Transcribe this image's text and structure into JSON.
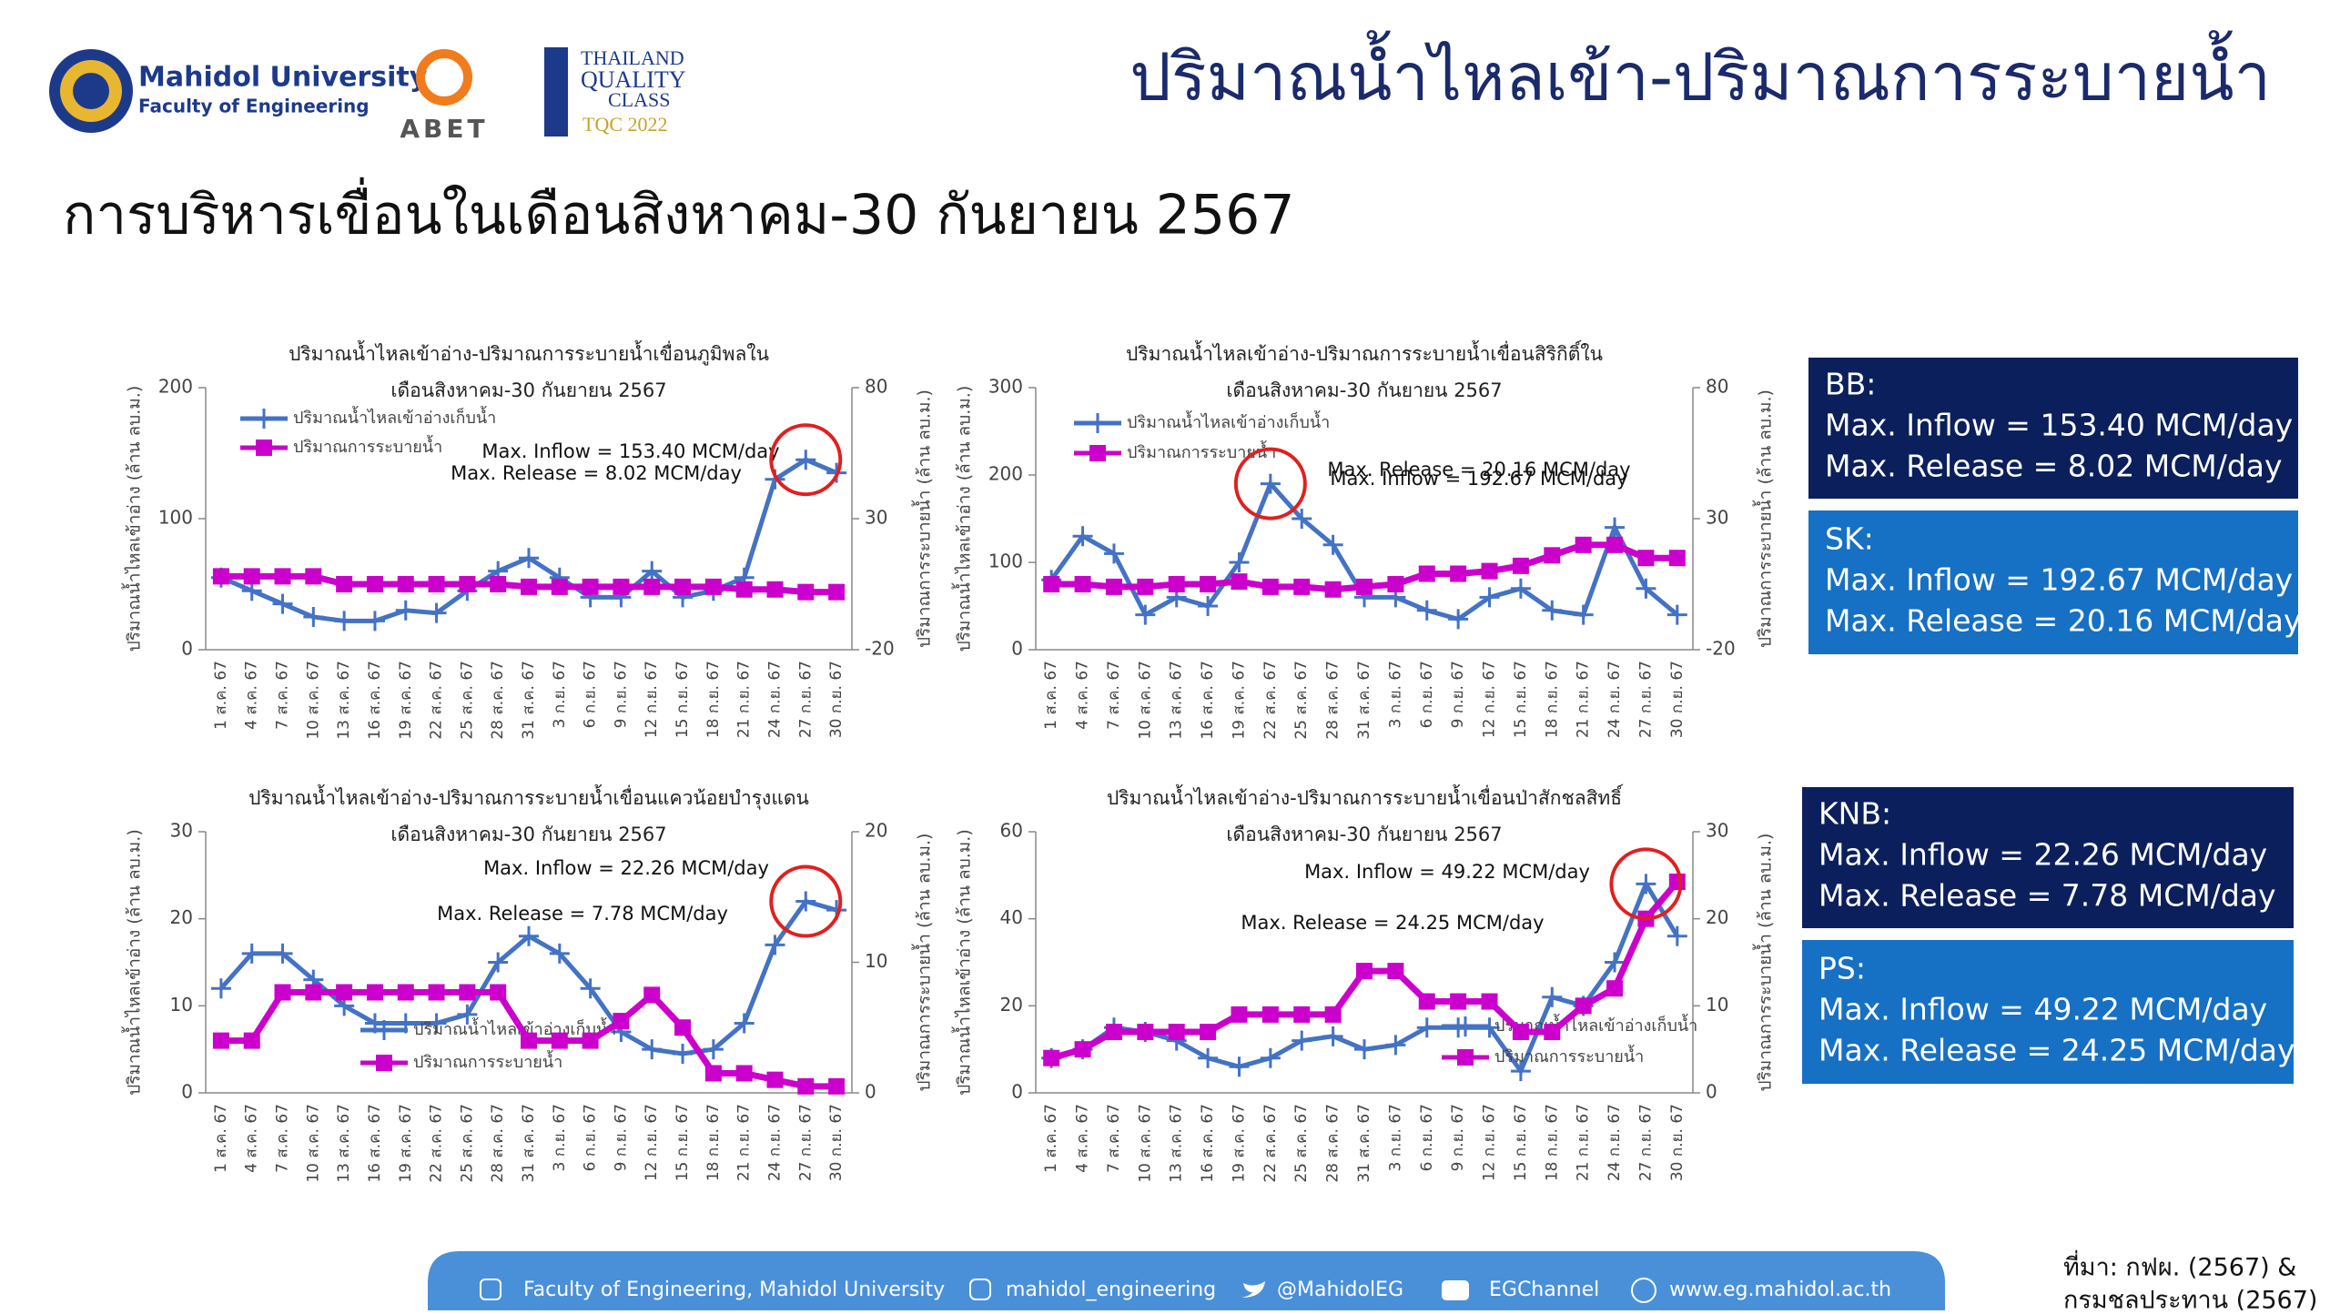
{
  "header": {
    "university": "Mahidol University",
    "faculty": "Faculty of Engineering",
    "abet": "ABET",
    "tqc": [
      "THAILAND",
      "QUALITY",
      "CLASS",
      "TQC 2022"
    ],
    "title": "ปริมาณน้ำไหลเข้า-ปริมาณการระบายน้ำ"
  },
  "subtitle": "การบริหารเขื่อนในเดือนสิงหาคม-30 กันยายน 2567",
  "chart_data": [
    {
      "type": "line",
      "title": "ปริมาณน้ำไหลเข้าอ่าง-ปริมาณการระบายน้ำเขื่อนภูมิพลใน",
      "subtitle": "เดือนสิงหาคม-30 กันยายน 2567",
      "ylabel": "ปริมาณน้ำไหลเข้าอ่าง (ล้าน ลบ.ม.)",
      "y2label": "ปริมาณการระบายน้ำ (ล้าน ลบ.ม.)",
      "categories": [
        "1 ส.ค. 67",
        "4 ส.ค. 67",
        "7 ส.ค. 67",
        "10 ส.ค. 67",
        "13 ส.ค. 67",
        "16 ส.ค. 67",
        "19 ส.ค. 67",
        "22 ส.ค. 67",
        "25 ส.ค. 67",
        "28 ส.ค. 67",
        "31 ส.ค. 67",
        "3 ก.ย. 67",
        "6 ก.ย. 67",
        "9 ก.ย. 67",
        "12 ก.ย. 67",
        "15 ก.ย. 67",
        "18 ก.ย. 67",
        "21 ก.ย. 67",
        "24 ก.ย. 67",
        "27 ก.ย. 67",
        "30 ก.ย. 67"
      ],
      "series": [
        {
          "name": "ปริมาณน้ำไหลเข้าอ่างเก็บน้ำ",
          "color": "#4472c4",
          "marker": "plus",
          "values": [
            55,
            45,
            35,
            25,
            22,
            22,
            30,
            28,
            45,
            60,
            70,
            55,
            40,
            40,
            60,
            40,
            45,
            55,
            130,
            145,
            135
          ]
        },
        {
          "name": "ปริมาณการระบายน้ำ",
          "color": "#cc00cc",
          "marker": "square",
          "axis": "y2",
          "values": [
            8,
            8,
            8,
            8,
            5,
            5,
            5,
            5,
            5,
            5,
            4,
            4,
            4,
            4,
            4,
            4,
            4,
            3,
            3,
            2,
            2
          ]
        }
      ],
      "ylim": [
        0,
        200
      ],
      "yticks": [
        0,
        100,
        200
      ],
      "y2lim": [
        -20,
        80
      ],
      "y2ticks": [
        -20,
        30,
        80
      ],
      "annotations": [
        "Max. Inflow = 153.40 MCM/day",
        "Max. Release = 8.02 MCM/day"
      ]
    },
    {
      "type": "line",
      "title": "ปริมาณน้ำไหลเข้าอ่าง-ปริมาณการระบายน้ำเขื่อนสิริกิติ์ใน",
      "subtitle": "เดือนสิงหาคม-30 กันยายน 2567",
      "ylabel": "ปริมาณน้ำไหลเข้าอ่าง (ล้าน ลบ.ม.)",
      "y2label": "ปริมาณการระบายน้ำ (ล้าน ลบ.ม.)",
      "categories": [
        "1 ส.ค. 67",
        "4 ส.ค. 67",
        "7 ส.ค. 67",
        "10 ส.ค. 67",
        "13 ส.ค. 67",
        "16 ส.ค. 67",
        "19 ส.ค. 67",
        "22 ส.ค. 67",
        "25 ส.ค. 67",
        "28 ส.ค. 67",
        "31 ส.ค. 67",
        "3 ก.ย. 67",
        "6 ก.ย. 67",
        "9 ก.ย. 67",
        "12 ก.ย. 67",
        "15 ก.ย. 67",
        "18 ก.ย. 67",
        "21 ก.ย. 67",
        "24 ก.ย. 67",
        "27 ก.ย. 67",
        "30 ก.ย. 67"
      ],
      "series": [
        {
          "name": "ปริมาณน้ำไหลเข้าอ่างเก็บน้ำ",
          "color": "#4472c4",
          "marker": "plus",
          "values": [
            80,
            130,
            110,
            40,
            60,
            50,
            100,
            190,
            150,
            120,
            60,
            60,
            45,
            35,
            60,
            70,
            45,
            40,
            140,
            70,
            40
          ]
        },
        {
          "name": "ปริมาณการระบายน้ำ",
          "color": "#cc00cc",
          "marker": "square",
          "axis": "y2",
          "values": [
            5,
            5,
            4,
            4,
            5,
            5,
            6,
            4,
            4,
            3,
            4,
            5,
            9,
            9,
            10,
            12,
            16,
            20,
            20,
            15,
            15
          ]
        }
      ],
      "ylim": [
        0,
        300
      ],
      "yticks": [
        0,
        100,
        200,
        300
      ],
      "y2lim": [
        -20,
        80
      ],
      "y2ticks": [
        -20,
        30,
        80
      ],
      "annotations": [
        "Max. Inflow = 192.67 MCM/day",
        "Max. Release = 20.16 MCM/day"
      ]
    },
    {
      "type": "line",
      "title": "ปริมาณน้ำไหลเข้าอ่าง-ปริมาณการระบายน้ำเขื่อนแควน้อยบำรุงแดน",
      "subtitle": "เดือนสิงหาคม-30 กันยายน 2567",
      "ylabel": "ปริมาณน้ำไหลเข้าอ่าง (ล้าน ลบ.ม.)",
      "y2label": "ปริมาณการระบายน้ำ (ล้าน ลบ.ม.)",
      "categories": [
        "1 ส.ค. 67",
        "4 ส.ค. 67",
        "7 ส.ค. 67",
        "10 ส.ค. 67",
        "13 ส.ค. 67",
        "16 ส.ค. 67",
        "19 ส.ค. 67",
        "22 ส.ค. 67",
        "25 ส.ค. 67",
        "28 ส.ค. 67",
        "31 ส.ค. 67",
        "3 ก.ย. 67",
        "6 ก.ย. 67",
        "9 ก.ย. 67",
        "12 ก.ย. 67",
        "15 ก.ย. 67",
        "18 ก.ย. 67",
        "21 ก.ย. 67",
        "24 ก.ย. 67",
        "27 ก.ย. 67",
        "30 ก.ย. 67"
      ],
      "series": [
        {
          "name": "ปริมาณน้ำไหลเข้าอ่างเก็บน้ำ",
          "color": "#4472c4",
          "marker": "plus",
          "values": [
            12,
            16,
            16,
            13,
            10,
            8,
            8,
            8,
            9,
            15,
            18,
            16,
            12,
            7,
            5,
            4.5,
            5,
            8,
            17,
            22,
            21
          ]
        },
        {
          "name": "ปริมาณการระบายน้ำ",
          "color": "#cc00cc",
          "marker": "square",
          "axis": "y2",
          "values": [
            4,
            4,
            7.7,
            7.7,
            7.7,
            7.7,
            7.7,
            7.7,
            7.7,
            7.7,
            4,
            4,
            4,
            5.5,
            7.5,
            5,
            1.5,
            1.5,
            1,
            0.5,
            0.5
          ]
        }
      ],
      "ylim": [
        0,
        30
      ],
      "yticks": [
        0,
        10,
        20,
        30
      ],
      "y2lim": [
        0,
        20
      ],
      "y2ticks": [
        0,
        10,
        20
      ],
      "annotations": [
        "Max. Inflow = 22.26 MCM/day",
        "Max. Release = 7.78 MCM/day"
      ]
    },
    {
      "type": "line",
      "title": "ปริมาณน้ำไหลเข้าอ่าง-ปริมาณการระบายน้ำเขื่อนป่าสักชลสิทธิ์",
      "subtitle": "เดือนสิงหาคม-30 กันยายน 2567",
      "ylabel": "ปริมาณน้ำไหลเข้าอ่าง (ล้าน ลบ.ม.)",
      "y2label": "ปริมาณการระบายน้ำ (ล้าน ลบ.ม.)",
      "categories": [
        "1 ส.ค. 67",
        "4 ส.ค. 67",
        "7 ส.ค. 67",
        "10 ส.ค. 67",
        "13 ส.ค. 67",
        "16 ส.ค. 67",
        "19 ส.ค. 67",
        "22 ส.ค. 67",
        "25 ส.ค. 67",
        "28 ส.ค. 67",
        "31 ส.ค. 67",
        "3 ก.ย. 67",
        "6 ก.ย. 67",
        "9 ก.ย. 67",
        "12 ก.ย. 67",
        "15 ก.ย. 67",
        "18 ก.ย. 67",
        "21 ก.ย. 67",
        "24 ก.ย. 67",
        "27 ก.ย. 67",
        "30 ก.ย. 67"
      ],
      "series": [
        {
          "name": "ปริมาณน้ำไหลเข้าอ่างเก็บน้ำ",
          "color": "#4472c4",
          "marker": "plus",
          "values": [
            8,
            10,
            15,
            14,
            12,
            8,
            6,
            8,
            12,
            13,
            10,
            11,
            15,
            15,
            15,
            5,
            22,
            20,
            30,
            48,
            36
          ]
        },
        {
          "name": "ปริมาณการระบายน้ำ",
          "color": "#cc00cc",
          "marker": "square",
          "axis": "y2",
          "values": [
            4,
            5,
            7,
            7,
            7,
            7,
            9,
            9,
            9,
            9,
            14,
            14,
            10.5,
            10.5,
            10.5,
            7,
            7,
            10,
            12,
            20,
            24.25
          ]
        }
      ],
      "ylim": [
        0,
        60
      ],
      "yticks": [
        0,
        20,
        40,
        60
      ],
      "y2lim": [
        0,
        30
      ],
      "y2ticks": [
        0,
        10,
        20,
        30
      ],
      "annotations": [
        "Max. Inflow = 49.22 MCM/day",
        "Max. Release = 24.25 MCM/day"
      ]
    }
  ],
  "summary": [
    {
      "name": "BB:",
      "lines": [
        "Max. Inflow = 153.40 MCM/day",
        "Max. Release = 8.02 MCM/day"
      ]
    },
    {
      "name": "SK:",
      "lines": [
        "Max. Inflow = 192.67 MCM/day",
        "Max. Release = 20.16 MCM/day"
      ]
    },
    {
      "name": "KNB:",
      "lines": [
        "Max. Inflow = 22.26 MCM/day",
        "Max. Release = 7.78 MCM/day"
      ]
    },
    {
      "name": "PS:",
      "lines": [
        "Max. Inflow = 49.22 MCM/day",
        "Max. Release = 24.25 MCM/day"
      ]
    }
  ],
  "footer": [
    "Faculty of Engineering, Mahidol University",
    "mahidol_engineering",
    "@MahidolEG",
    "EGChannel",
    "www.eg.mahidol.ac.th"
  ],
  "source": [
    "ที่มา: กฟผ. (2567) &",
    "กรมชลประทาน (2567)"
  ]
}
